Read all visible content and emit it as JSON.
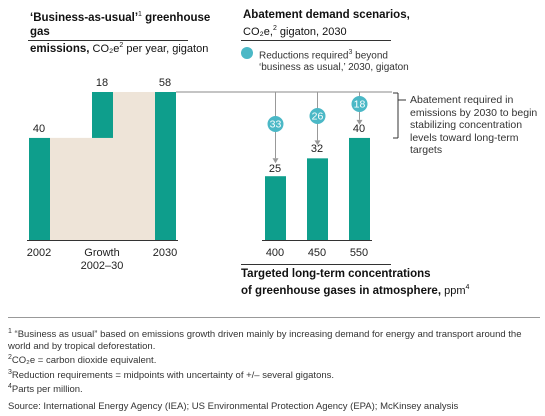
{
  "colors": {
    "teal": "#0e9e8c",
    "beige": "#eee4d8",
    "dot": "#4bb8c6",
    "line": "#333333"
  },
  "left": {
    "title_bold": "‘Business-as-usual’",
    "title_sup": "1",
    "title_bold2": " greenhouse gas",
    "title_line2_bold": "emissions,",
    "title_line2_rest": " CO₂e",
    "title_line2_sup": "2",
    "title_line2_tail": " per year, gigaton"
  },
  "right": {
    "title_bold": "Abatement demand scenarios,",
    "sub_a": "CO₂e,",
    "sub_sup": "2",
    "sub_b": " gigaton, 2030",
    "legend_line1": "Reductions required",
    "legend_sup": "3",
    "legend_line1b": " beyond",
    "legend_line2": "‘business as usual,’ 2030, gigaton"
  },
  "annotation": "Abatement required in emissions by 2030 to begin stabilizing concentration levels toward long-term targets",
  "bottom_title": {
    "line1": "Targeted long-term concentrations",
    "line2_bold": "of greenhouse gases in atmosphere,",
    "line2_rest": " ppm",
    "sup": "4"
  },
  "chart_data": [
    {
      "type": "bar",
      "title": "‘Business-as-usual’ greenhouse gas emissions, CO₂e per year, gigaton",
      "categories": [
        "2002",
        "Growth 2002–30",
        "2030"
      ],
      "values": [
        40,
        18,
        58
      ],
      "value_labels": [
        "40",
        "18",
        "58"
      ],
      "waterfall": true,
      "ylim": [
        0,
        60
      ]
    },
    {
      "type": "bar",
      "title": "Abatement demand scenarios, CO₂e, gigaton, 2030",
      "categories": [
        "400",
        "450",
        "550"
      ],
      "values": [
        25,
        32,
        40
      ],
      "value_labels": [
        "25",
        "32",
        "40"
      ],
      "reductions": [
        33,
        26,
        18
      ],
      "reduction_labels": [
        "33",
        "26",
        "18"
      ],
      "baseline": 58,
      "xlabel": "Targeted long-term concentrations of greenhouse gases in atmosphere, ppm",
      "ylim": [
        0,
        60
      ]
    }
  ],
  "footnotes": [
    {
      "num": "1",
      "text": "“Business as usual” based on emissions growth driven mainly by increasing demand for energy and transport around the world and by tropical deforestation."
    },
    {
      "num": "2",
      "text": "CO₂e = carbon dioxide equivalent."
    },
    {
      "num": "3",
      "text": "Reduction requirements = midpoints with uncertainty of +/– several gigatons."
    },
    {
      "num": "4",
      "text": "Parts per million."
    }
  ],
  "source": "Source: International Energy Agency (IEA); US Environmental Protection Agency (EPA); McKinsey analysis"
}
